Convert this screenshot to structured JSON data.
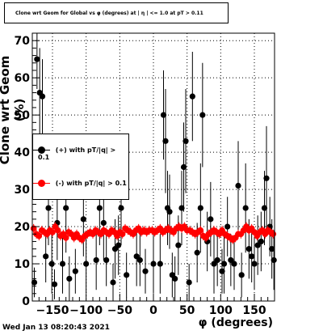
{
  "chart_data": {
    "type": "scatter",
    "title": "Clone wrt Geom for Global vs φ (degrees) at | η | <= 1.0 at pT > 0.11",
    "xlabel": "φ (degrees)",
    "ylabel": "Clone wrt Geom (%)",
    "xlim": [
      -180,
      180
    ],
    "ylim": [
      0,
      72
    ],
    "xticks": [
      -150,
      -100,
      -50,
      0,
      50,
      100,
      150
    ],
    "yticks": [
      0,
      10,
      20,
      30,
      40,
      50,
      60,
      70
    ],
    "grid": true,
    "legend_position": "left",
    "series": [
      {
        "name": "(+) with pT/|q| > 0.1",
        "color": "#000000",
        "points": [
          {
            "x": -177,
            "y": 5,
            "err": 4
          },
          {
            "x": -173,
            "y": 65,
            "err": 8
          },
          {
            "x": -169,
            "y": 56,
            "err": 12
          },
          {
            "x": -165,
            "y": 55,
            "err": 10
          },
          {
            "x": -160,
            "y": 12,
            "err": 7
          },
          {
            "x": -156,
            "y": 25,
            "err": 10
          },
          {
            "x": -151,
            "y": 10,
            "err": 8
          },
          {
            "x": -147,
            "y": 4.5,
            "err": 4
          },
          {
            "x": -143,
            "y": 21,
            "err": 10
          },
          {
            "x": -135,
            "y": 10,
            "err": 8
          },
          {
            "x": -130,
            "y": 25,
            "err": 12
          },
          {
            "x": -125,
            "y": 6,
            "err": 6
          },
          {
            "x": -116,
            "y": 8,
            "err": 6
          },
          {
            "x": -104,
            "y": 22,
            "err": 10
          },
          {
            "x": -100,
            "y": 10,
            "err": 8
          },
          {
            "x": -85,
            "y": 11,
            "err": 8
          },
          {
            "x": -80,
            "y": 25,
            "err": 10
          },
          {
            "x": -74,
            "y": 21,
            "err": 10
          },
          {
            "x": -70,
            "y": 11,
            "err": 7
          },
          {
            "x": -60,
            "y": 5,
            "err": 5
          },
          {
            "x": -57,
            "y": 14,
            "err": 8
          },
          {
            "x": -52,
            "y": 15,
            "err": 8
          },
          {
            "x": -48,
            "y": 25,
            "err": 10
          },
          {
            "x": -40,
            "y": 7,
            "err": 6
          },
          {
            "x": -25,
            "y": 12,
            "err": 8
          },
          {
            "x": -20,
            "y": 11,
            "err": 7
          },
          {
            "x": -12,
            "y": 8,
            "err": 6
          },
          {
            "x": 0,
            "y": 10,
            "err": 8
          },
          {
            "x": 10,
            "y": 10,
            "err": 8
          },
          {
            "x": 15,
            "y": 50,
            "err": 12
          },
          {
            "x": 18,
            "y": 43,
            "err": 14
          },
          {
            "x": 21,
            "y": 25,
            "err": 10
          },
          {
            "x": 24,
            "y": 24,
            "err": 10
          },
          {
            "x": 28,
            "y": 7,
            "err": 6
          },
          {
            "x": 32,
            "y": 6,
            "err": 6
          },
          {
            "x": 37,
            "y": 15,
            "err": 8
          },
          {
            "x": 42,
            "y": 25,
            "err": 10
          },
          {
            "x": 45,
            "y": 36,
            "err": 12
          },
          {
            "x": 48,
            "y": 43,
            "err": 14
          },
          {
            "x": 53,
            "y": 5,
            "err": 5
          },
          {
            "x": 58,
            "y": 55,
            "err": 12
          },
          {
            "x": 65,
            "y": 13,
            "err": 8
          },
          {
            "x": 70,
            "y": 25,
            "err": 12
          },
          {
            "x": 73,
            "y": 50,
            "err": 14
          },
          {
            "x": 80,
            "y": 16,
            "err": 8
          },
          {
            "x": 85,
            "y": 22,
            "err": 10
          },
          {
            "x": 90,
            "y": 10,
            "err": 8
          },
          {
            "x": 95,
            "y": 11,
            "err": 7
          },
          {
            "x": 102,
            "y": 8,
            "err": 6
          },
          {
            "x": 105,
            "y": 10,
            "err": 8
          },
          {
            "x": 110,
            "y": 20,
            "err": 8
          },
          {
            "x": 115,
            "y": 11,
            "err": 7
          },
          {
            "x": 120,
            "y": 10,
            "err": 7
          },
          {
            "x": 126,
            "y": 31,
            "err": 12
          },
          {
            "x": 131,
            "y": 7,
            "err": 6
          },
          {
            "x": 137,
            "y": 25,
            "err": 12
          },
          {
            "x": 142,
            "y": 14,
            "err": 8
          },
          {
            "x": 146,
            "y": 12,
            "err": 7
          },
          {
            "x": 150,
            "y": 10,
            "err": 7
          },
          {
            "x": 155,
            "y": 15,
            "err": 8
          },
          {
            "x": 160,
            "y": 16,
            "err": 8
          },
          {
            "x": 165,
            "y": 25,
            "err": 10
          },
          {
            "x": 168,
            "y": 33,
            "err": 14
          },
          {
            "x": 173,
            "y": 20,
            "err": 8
          },
          {
            "x": 176,
            "y": 14,
            "err": 8
          },
          {
            "x": 179,
            "y": 11,
            "err": 8
          }
        ]
      },
      {
        "name": "(-) with pT/|q| > 0.1",
        "color": "#ff0000",
        "points": [
          {
            "x": -178,
            "y": 19.5
          },
          {
            "x": -174,
            "y": 18
          },
          {
            "x": -170,
            "y": 17.5
          },
          {
            "x": -166,
            "y": 19
          },
          {
            "x": -162,
            "y": 18.5
          },
          {
            "x": -158,
            "y": 18
          },
          {
            "x": -154,
            "y": 19
          },
          {
            "x": -150,
            "y": 18.5
          },
          {
            "x": -146,
            "y": 20
          },
          {
            "x": -142,
            "y": 19
          },
          {
            "x": -138,
            "y": 17.5
          },
          {
            "x": -134,
            "y": 18
          },
          {
            "x": -130,
            "y": 17
          },
          {
            "x": -126,
            "y": 18.5
          },
          {
            "x": -122,
            "y": 18
          },
          {
            "x": -118,
            "y": 17
          },
          {
            "x": -114,
            "y": 18
          },
          {
            "x": -110,
            "y": 17
          },
          {
            "x": -106,
            "y": 16.5
          },
          {
            "x": -102,
            "y": 17.5
          },
          {
            "x": -98,
            "y": 18
          },
          {
            "x": -94,
            "y": 18.5
          },
          {
            "x": -90,
            "y": 18
          },
          {
            "x": -86,
            "y": 19
          },
          {
            "x": -82,
            "y": 18.5
          },
          {
            "x": -78,
            "y": 18
          },
          {
            "x": -74,
            "y": 19
          },
          {
            "x": -70,
            "y": 18.5
          },
          {
            "x": -66,
            "y": 18
          },
          {
            "x": -62,
            "y": 19
          },
          {
            "x": -58,
            "y": 18.5
          },
          {
            "x": -54,
            "y": 17.5
          },
          {
            "x": -50,
            "y": 18.5
          },
          {
            "x": -46,
            "y": 18
          },
          {
            "x": -42,
            "y": 19.5
          },
          {
            "x": -38,
            "y": 19
          },
          {
            "x": -34,
            "y": 18.5
          },
          {
            "x": -30,
            "y": 18
          },
          {
            "x": -26,
            "y": 19
          },
          {
            "x": -22,
            "y": 19.5
          },
          {
            "x": -18,
            "y": 18.5
          },
          {
            "x": -14,
            "y": 19
          },
          {
            "x": -10,
            "y": 18.5
          },
          {
            "x": -6,
            "y": 19
          },
          {
            "x": -2,
            "y": 19
          },
          {
            "x": 2,
            "y": 18.5
          },
          {
            "x": 6,
            "y": 19
          },
          {
            "x": 10,
            "y": 19.5
          },
          {
            "x": 14,
            "y": 18.5
          },
          {
            "x": 18,
            "y": 19
          },
          {
            "x": 22,
            "y": 19.5
          },
          {
            "x": 26,
            "y": 19
          },
          {
            "x": 30,
            "y": 18.5
          },
          {
            "x": 34,
            "y": 19.5
          },
          {
            "x": 38,
            "y": 20
          },
          {
            "x": 42,
            "y": 19.5
          },
          {
            "x": 46,
            "y": 20
          },
          {
            "x": 50,
            "y": 19
          },
          {
            "x": 54,
            "y": 19
          },
          {
            "x": 58,
            "y": 18.5
          },
          {
            "x": 62,
            "y": 18
          },
          {
            "x": 66,
            "y": 18.5
          },
          {
            "x": 70,
            "y": 19
          },
          {
            "x": 74,
            "y": 17.5
          },
          {
            "x": 78,
            "y": 17
          },
          {
            "x": 82,
            "y": 18
          },
          {
            "x": 86,
            "y": 18.5
          },
          {
            "x": 90,
            "y": 19
          },
          {
            "x": 94,
            "y": 18.5
          },
          {
            "x": 98,
            "y": 18
          },
          {
            "x": 102,
            "y": 19
          },
          {
            "x": 106,
            "y": 18
          },
          {
            "x": 110,
            "y": 17.5
          },
          {
            "x": 114,
            "y": 17
          },
          {
            "x": 118,
            "y": 16.5
          },
          {
            "x": 122,
            "y": 17
          },
          {
            "x": 126,
            "y": 18
          },
          {
            "x": 130,
            "y": 18
          },
          {
            "x": 134,
            "y": 19
          },
          {
            "x": 138,
            "y": 20
          },
          {
            "x": 142,
            "y": 19
          },
          {
            "x": 146,
            "y": 19.5
          },
          {
            "x": 150,
            "y": 18.5
          },
          {
            "x": 154,
            "y": 17.5
          },
          {
            "x": 158,
            "y": 18.5
          },
          {
            "x": 162,
            "y": 19
          },
          {
            "x": 166,
            "y": 18
          },
          {
            "x": 170,
            "y": 19
          },
          {
            "x": 174,
            "y": 18.5
          },
          {
            "x": 178,
            "y": 18
          }
        ]
      }
    ]
  },
  "timestamp": "Wed Jan 13 08:20:43 2021"
}
